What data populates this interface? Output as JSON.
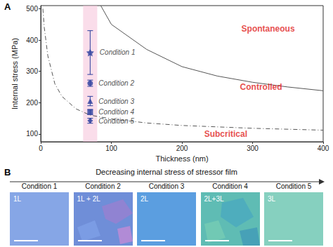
{
  "chart_data": {
    "type": "scatter",
    "panel_label": "A",
    "x_label": "Thickness (nm)",
    "y_label": "Internal stress (MPa)",
    "xlim": [
      0,
      400
    ],
    "xticks": [
      0,
      100,
      200,
      300,
      400
    ],
    "ylim": [
      75,
      510
    ],
    "yticks": [
      100,
      200,
      300,
      400,
      500
    ],
    "grid": false,
    "highlight_x": [
      60,
      80
    ],
    "highlight_color": "#f7c6dc",
    "series": [
      {
        "type": "line",
        "color": "#555555",
        "line_style": "solid",
        "x": [
          85,
          100,
          150,
          200,
          250,
          300,
          350,
          400
        ],
        "values": [
          510,
          450,
          370,
          315,
          285,
          265,
          250,
          238
        ]
      },
      {
        "type": "line",
        "color": "#555555",
        "line_style": "dashed",
        "x": [
          3,
          5,
          10,
          20,
          30,
          50,
          70,
          100,
          150,
          200,
          300,
          400
        ],
        "values": [
          500,
          440,
          350,
          260,
          220,
          180,
          160,
          148,
          135,
          127,
          118,
          112
        ]
      },
      {
        "name": "Condition 1",
        "type": "scatter",
        "marker": "star",
        "color": "#2a3f9e",
        "x": [
          70
        ],
        "values": [
          360
        ],
        "error": [
          70
        ]
      },
      {
        "name": "Condition 2",
        "type": "scatter",
        "marker": "circle",
        "color": "#2a3f9e",
        "x": [
          70
        ],
        "values": [
          262
        ],
        "error": [
          10
        ]
      },
      {
        "name": "Condition 3",
        "type": "scatter",
        "marker": "triangle",
        "color": "#2a3f9e",
        "x": [
          70
        ],
        "values": [
          205
        ],
        "error": [
          15
        ]
      },
      {
        "name": "Condition 4",
        "type": "scatter",
        "marker": "square",
        "color": "#2a3f9e",
        "x": [
          70
        ],
        "values": [
          170
        ],
        "error": [
          8
        ]
      },
      {
        "name": "Condition 5",
        "type": "scatter",
        "marker": "diamond",
        "color": "#2a3f9e",
        "x": [
          70
        ],
        "values": [
          142
        ],
        "error": [
          8
        ]
      }
    ],
    "annotations": [
      {
        "text": "Spontaneous",
        "x": 322,
        "y": 437,
        "color": "#e0201a"
      },
      {
        "text": "Controlled",
        "x": 312,
        "y": 250,
        "color": "#e0201a"
      },
      {
        "text": "Subcritical",
        "x": 262,
        "y": 100,
        "color": "#e0201a"
      }
    ]
  },
  "panel_b": {
    "label": "B",
    "arrow_text": "Decreasing internal stress of stressor film",
    "tiles": [
      {
        "condition": "Condition 1",
        "layer": "1L",
        "color": "#86a6e6"
      },
      {
        "condition": "Condition 2",
        "layer": "1L + 2L",
        "color": "#6f8ed8"
      },
      {
        "condition": "Condition 3",
        "layer": "2L",
        "color": "#5b9ee0"
      },
      {
        "condition": "Condition 4",
        "layer": "2L+3L",
        "color": "#5fbcb4"
      },
      {
        "condition": "Condition 5",
        "layer": "3L",
        "color": "#86d0bf"
      }
    ]
  }
}
